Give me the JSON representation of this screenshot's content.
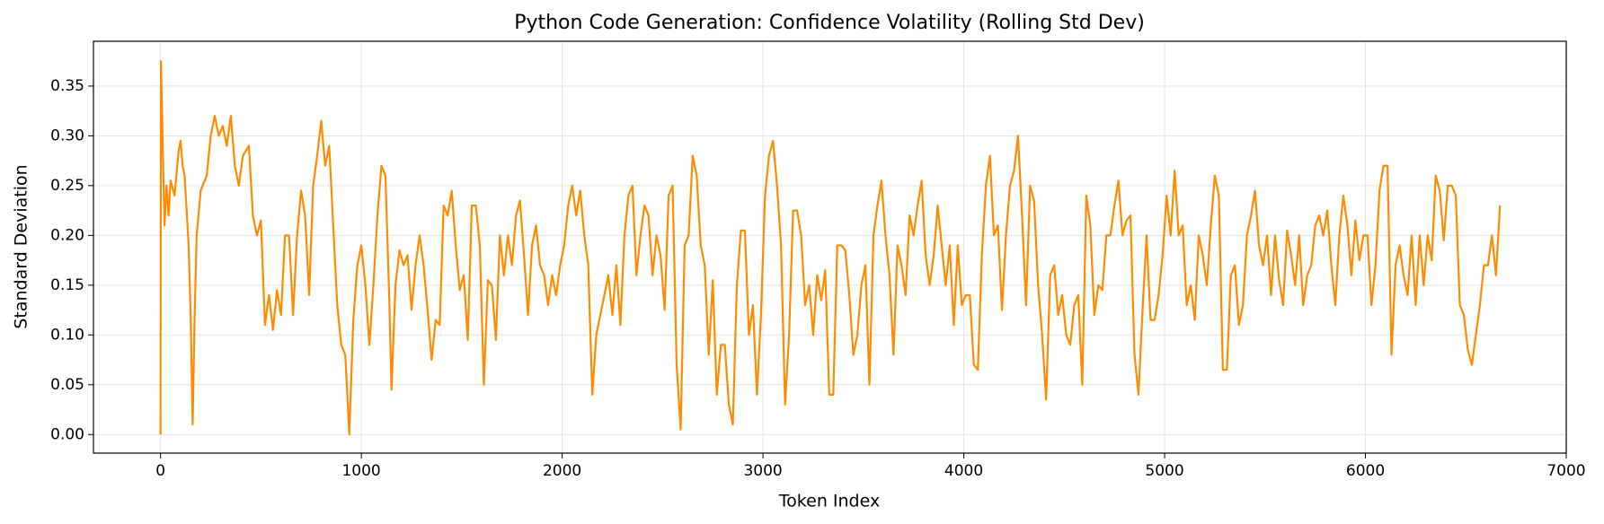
{
  "chart_data": {
    "type": "line",
    "title": "Python Code Generation: Confidence Volatility (Rolling Std Dev)",
    "x_label": "Token Index",
    "y_label": "Standard Deviation",
    "color": "#ff8c00",
    "grid": true,
    "xlim": [
      -334,
      7000
    ],
    "ylim": [
      -0.0187,
      0.395
    ],
    "xticks": [
      0,
      1000,
      2000,
      3000,
      4000,
      5000,
      6000,
      7000
    ],
    "yticks": [
      {
        "value": 0,
        "label": "0.00"
      },
      0.05,
      {
        "value": 0.1,
        "label": "0.10"
      },
      0.15,
      {
        "value": 0.2,
        "label": "0.20"
      },
      0.25,
      {
        "value": 0.3,
        "label": "0.30"
      },
      0.35
    ],
    "x": [
      0,
      2,
      10,
      20,
      30,
      40,
      50,
      70,
      90,
      100,
      110,
      120,
      140,
      150,
      160,
      170,
      180,
      200,
      230,
      250,
      270,
      290,
      310,
      330,
      350,
      370,
      390,
      410,
      440,
      460,
      480,
      500,
      520,
      540,
      560,
      580,
      600,
      620,
      640,
      660,
      680,
      700,
      720,
      740,
      760,
      780,
      800,
      820,
      840,
      860,
      880,
      900,
      920,
      940,
      960,
      980,
      1000,
      1020,
      1040,
      1060,
      1080,
      1100,
      1120,
      1140,
      1150,
      1170,
      1190,
      1210,
      1230,
      1250,
      1270,
      1290,
      1310,
      1330,
      1350,
      1370,
      1390,
      1410,
      1430,
      1450,
      1470,
      1490,
      1510,
      1530,
      1550,
      1570,
      1590,
      1610,
      1630,
      1650,
      1670,
      1690,
      1710,
      1730,
      1750,
      1770,
      1790,
      1810,
      1830,
      1850,
      1870,
      1890,
      1910,
      1930,
      1950,
      1970,
      1990,
      2010,
      2030,
      2050,
      2070,
      2090,
      2110,
      2130,
      2150,
      2170,
      2190,
      2210,
      2230,
      2250,
      2270,
      2290,
      2310,
      2330,
      2350,
      2370,
      2390,
      2410,
      2430,
      2450,
      2470,
      2490,
      2510,
      2530,
      2550,
      2570,
      2590,
      2610,
      2630,
      2650,
      2670,
      2690,
      2710,
      2730,
      2750,
      2770,
      2790,
      2810,
      2830,
      2850,
      2870,
      2890,
      2910,
      2930,
      2950,
      2970,
      2990,
      3010,
      3030,
      3050,
      3070,
      3090,
      3110,
      3130,
      3150,
      3170,
      3190,
      3210,
      3230,
      3250,
      3270,
      3290,
      3310,
      3330,
      3350,
      3370,
      3390,
      3410,
      3430,
      3450,
      3470,
      3490,
      3510,
      3530,
      3550,
      3570,
      3590,
      3610,
      3630,
      3650,
      3670,
      3690,
      3710,
      3730,
      3750,
      3770,
      3790,
      3810,
      3830,
      3850,
      3870,
      3890,
      3910,
      3930,
      3950,
      3970,
      3990,
      4010,
      4030,
      4050,
      4070,
      4090,
      4110,
      4130,
      4150,
      4170,
      4190,
      4210,
      4230,
      4250,
      4270,
      4290,
      4310,
      4330,
      4350,
      4370,
      4390,
      4410,
      4430,
      4450,
      4470,
      4490,
      4510,
      4530,
      4550,
      4570,
      4590,
      4610,
      4630,
      4650,
      4670,
      4690,
      4710,
      4730,
      4750,
      4770,
      4790,
      4810,
      4830,
      4850,
      4870,
      4890,
      4910,
      4930,
      4950,
      4970,
      4990,
      5010,
      5030,
      5050,
      5070,
      5090,
      5110,
      5130,
      5150,
      5170,
      5190,
      5210,
      5230,
      5250,
      5270,
      5290,
      5310,
      5330,
      5350,
      5370,
      5390,
      5410,
      5430,
      5450,
      5470,
      5490,
      5510,
      5530,
      5550,
      5570,
      5590,
      5610,
      5630,
      5650,
      5670,
      5690,
      5710,
      5730,
      5750,
      5770,
      5790,
      5810,
      5830,
      5850,
      5870,
      5890,
      5910,
      5930,
      5950,
      5970,
      5990,
      6010,
      6030,
      6050,
      6070,
      6090,
      6110,
      6130,
      6150,
      6170,
      6190,
      6210,
      6230,
      6250,
      6270,
      6290,
      6310,
      6330,
      6350,
      6370,
      6390,
      6410,
      6430,
      6450,
      6470,
      6490,
      6510,
      6530,
      6550,
      6570,
      6590,
      6610,
      6630,
      6650,
      6670
    ],
    "values": [
      0,
      0.375,
      0.3,
      0.21,
      0.25,
      0.22,
      0.255,
      0.24,
      0.285,
      0.295,
      0.27,
      0.26,
      0.19,
      0.12,
      0.01,
      0.12,
      0.2,
      0.245,
      0.26,
      0.3,
      0.32,
      0.3,
      0.31,
      0.29,
      0.32,
      0.27,
      0.25,
      0.28,
      0.29,
      0.22,
      0.2,
      0.215,
      0.11,
      0.14,
      0.105,
      0.145,
      0.12,
      0.2,
      0.2,
      0.12,
      0.2,
      0.245,
      0.22,
      0.14,
      0.25,
      0.28,
      0.315,
      0.27,
      0.29,
      0.21,
      0.13,
      0.09,
      0.08,
      0,
      0.115,
      0.17,
      0.19,
      0.15,
      0.09,
      0.15,
      0.22,
      0.27,
      0.26,
      0.13,
      0.045,
      0.15,
      0.185,
      0.17,
      0.18,
      0.125,
      0.17,
      0.2,
      0.17,
      0.125,
      0.075,
      0.115,
      0.11,
      0.23,
      0.22,
      0.245,
      0.19,
      0.145,
      0.16,
      0.095,
      0.23,
      0.23,
      0.19,
      0.05,
      0.155,
      0.15,
      0.095,
      0.2,
      0.16,
      0.2,
      0.17,
      0.22,
      0.235,
      0.18,
      0.12,
      0.19,
      0.21,
      0.17,
      0.16,
      0.13,
      0.16,
      0.14,
      0.17,
      0.19,
      0.23,
      0.25,
      0.22,
      0.245,
      0.2,
      0.17,
      0.04,
      0.1,
      0.12,
      0.14,
      0.16,
      0.12,
      0.17,
      0.11,
      0.2,
      0.24,
      0.25,
      0.16,
      0.2,
      0.23,
      0.22,
      0.16,
      0.2,
      0.18,
      0.125,
      0.24,
      0.25,
      0.07,
      0.005,
      0.19,
      0.2,
      0.28,
      0.26,
      0.19,
      0.17,
      0.08,
      0.155,
      0.04,
      0.09,
      0.09,
      0.03,
      0.01,
      0.15,
      0.205,
      0.205,
      0.1,
      0.13,
      0.04,
      0.12,
      0.24,
      0.28,
      0.295,
      0.25,
      0.19,
      0.03,
      0.1,
      0.225,
      0.225,
      0.2,
      0.13,
      0.15,
      0.1,
      0.16,
      0.135,
      0.165,
      0.04,
      0.04,
      0.19,
      0.19,
      0.185,
      0.14,
      0.08,
      0.1,
      0.15,
      0.17,
      0.05,
      0.2,
      0.23,
      0.255,
      0.2,
      0.16,
      0.08,
      0.19,
      0.17,
      0.14,
      0.22,
      0.2,
      0.23,
      0.255,
      0.18,
      0.15,
      0.18,
      0.23,
      0.19,
      0.15,
      0.19,
      0.11,
      0.19,
      0.13,
      0.14,
      0.14,
      0.07,
      0.065,
      0.18,
      0.25,
      0.28,
      0.2,
      0.21,
      0.125,
      0.2,
      0.25,
      0.265,
      0.3,
      0.22,
      0.13,
      0.25,
      0.235,
      0.15,
      0.1,
      0.035,
      0.16,
      0.17,
      0.12,
      0.14,
      0.1,
      0.09,
      0.13,
      0.14,
      0.05,
      0.24,
      0.21,
      0.12,
      0.15,
      0.145,
      0.2,
      0.2,
      0.23,
      0.255,
      0.2,
      0.215,
      0.22,
      0.08,
      0.04,
      0.125,
      0.2,
      0.115,
      0.115,
      0.14,
      0.18,
      0.24,
      0.2,
      0.265,
      0.2,
      0.21,
      0.13,
      0.15,
      0.115,
      0.2,
      0.18,
      0.15,
      0.21,
      0.26,
      0.24,
      0.065,
      0.065,
      0.16,
      0.17,
      0.11,
      0.13,
      0.2,
      0.22,
      0.245,
      0.19,
      0.17,
      0.2,
      0.14,
      0.2,
      0.155,
      0.13,
      0.205,
      0.18,
      0.15,
      0.2,
      0.13,
      0.16,
      0.17,
      0.21,
      0.22,
      0.2,
      0.225,
      0.17,
      0.13,
      0.2,
      0.24,
      0.21,
      0.16,
      0.215,
      0.175,
      0.2,
      0.2,
      0.13,
      0.17,
      0.245,
      0.27,
      0.27,
      0.08,
      0.17,
      0.19,
      0.16,
      0.14,
      0.2,
      0.13,
      0.2,
      0.15,
      0.2,
      0.175,
      0.26,
      0.245,
      0.195,
      0.25,
      0.25,
      0.24,
      0.13,
      0.12,
      0.085,
      0.07,
      0.1,
      0.13,
      0.17,
      0.17,
      0.2,
      0.16,
      0.23
    ]
  }
}
